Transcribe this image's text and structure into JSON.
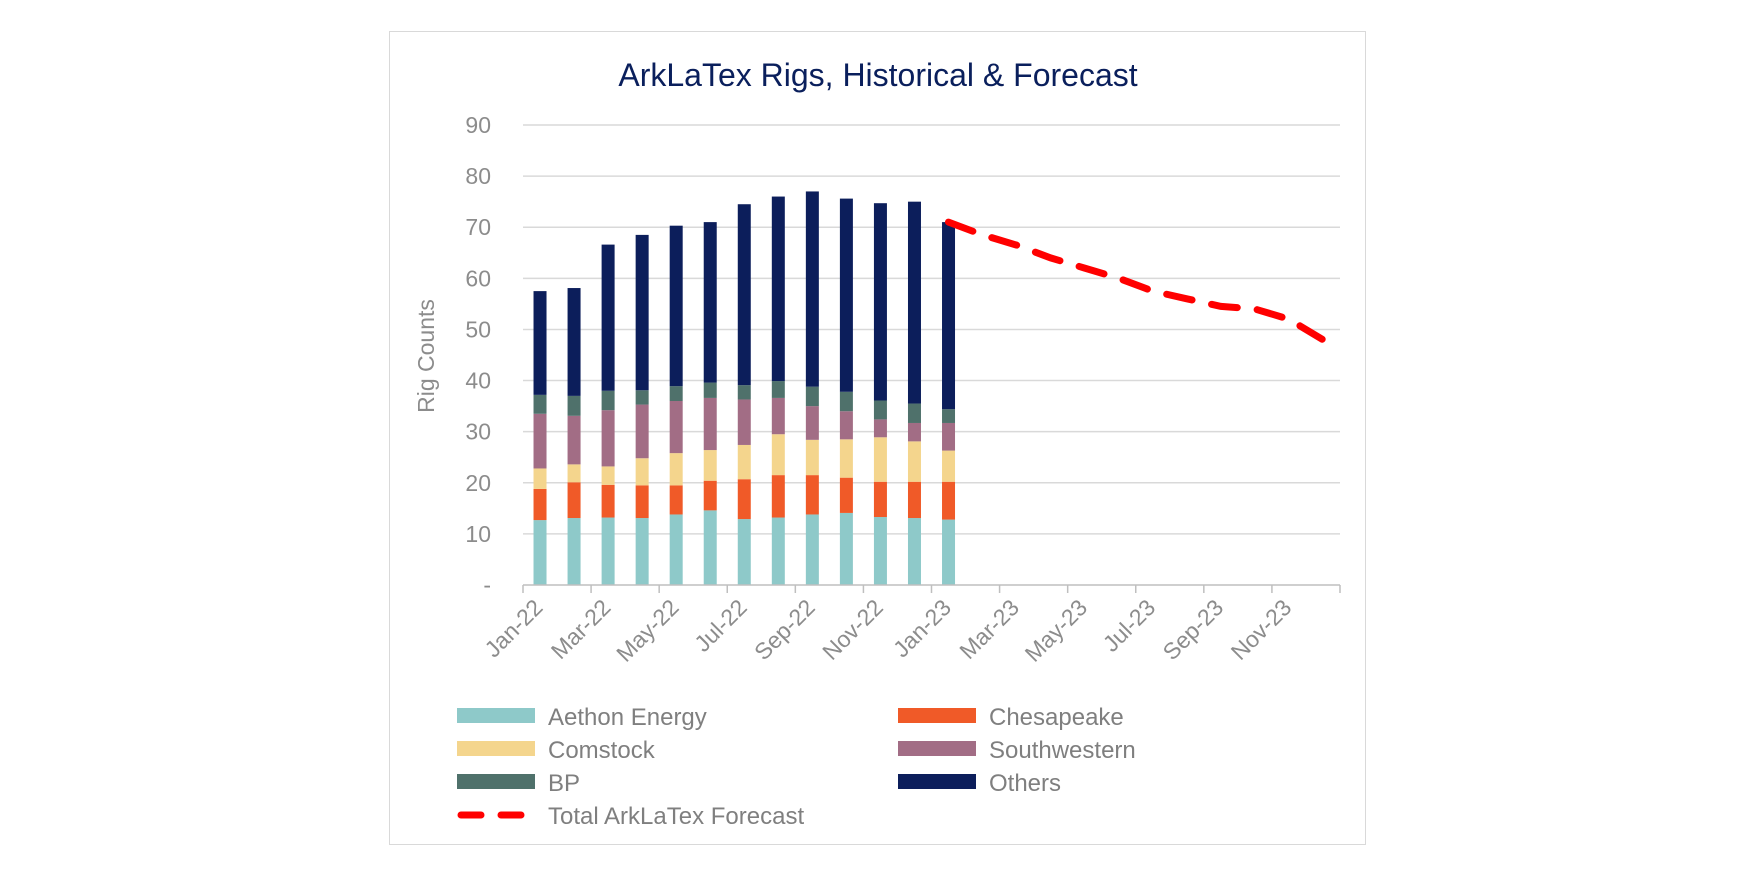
{
  "chart_data": {
    "type": "bar",
    "title": "ArkLaTex Rigs, Historical & Forecast",
    "xlabel": "",
    "ylabel": "Rig Counts",
    "ylim": [
      0,
      90
    ],
    "yticks": [
      "-",
      "10",
      "20",
      "30",
      "40",
      "50",
      "60",
      "70",
      "80",
      "90"
    ],
    "xtick_labels": [
      "Jan-22",
      "Mar-22",
      "May-22",
      "Jul-22",
      "Sep-22",
      "Nov-22",
      "Jan-23",
      "Mar-23",
      "May-23",
      "Jul-23",
      "Sep-23",
      "Nov-23"
    ],
    "months": [
      "Jan-22",
      "Feb-22",
      "Mar-22",
      "Apr-22",
      "May-22",
      "Jun-22",
      "Jul-22",
      "Aug-22",
      "Sep-22",
      "Oct-22",
      "Nov-22",
      "Dec-22",
      "Jan-23",
      "Feb-23",
      "Mar-23",
      "Apr-23",
      "May-23",
      "Jun-23",
      "Jul-23",
      "Aug-23",
      "Sep-23",
      "Oct-23",
      "Nov-23",
      "Dec-23"
    ],
    "stacked": true,
    "grid": true,
    "legend_position": "bottom",
    "series": [
      {
        "name": "Aethon Energy",
        "color": "#8ec9c9",
        "values": [
          12.7,
          13.1,
          13.2,
          13.1,
          13.8,
          14.6,
          12.9,
          13.2,
          13.8,
          14.1,
          13.3,
          13.1,
          12.8
        ]
      },
      {
        "name": "Chesapeake",
        "color": "#f05a28",
        "values": [
          6.1,
          7.0,
          6.4,
          6.4,
          5.7,
          5.8,
          7.8,
          8.3,
          7.7,
          6.9,
          6.9,
          7.1,
          7.4
        ]
      },
      {
        "name": "Comstock",
        "color": "#f4d58d",
        "values": [
          4.0,
          3.5,
          3.6,
          5.3,
          6.3,
          6.0,
          6.7,
          8.0,
          6.9,
          7.5,
          8.7,
          7.9,
          6.1
        ]
      },
      {
        "name": "Southwestern",
        "color": "#a26d85",
        "values": [
          10.7,
          9.5,
          11.0,
          10.5,
          10.2,
          10.2,
          8.9,
          7.1,
          6.6,
          5.5,
          3.5,
          3.6,
          5.4
        ]
      },
      {
        "name": "BP",
        "color": "#4f716b",
        "values": [
          3.7,
          3.9,
          3.8,
          2.8,
          2.9,
          3.0,
          2.8,
          3.3,
          3.8,
          3.8,
          3.7,
          3.8,
          2.7
        ]
      },
      {
        "name": "Others",
        "color": "#0c1e5b",
        "values": [
          20.3,
          21.1,
          28.6,
          30.4,
          31.4,
          31.4,
          35.4,
          36.1,
          38.2,
          37.8,
          38.6,
          39.5,
          36.6
        ]
      }
    ],
    "forecast": {
      "name": "Total ArkLaTex Forecast",
      "color": "#ff0000",
      "style": "dashed",
      "x": [
        "Jan-23",
        "Feb-23",
        "Mar-23",
        "Apr-23",
        "May-23",
        "Jun-23",
        "Jul-23",
        "Aug-23",
        "Sep-23",
        "Oct-23",
        "Nov-23",
        "Dec-23"
      ],
      "values": [
        71,
        68.5,
        66.5,
        64,
        62,
        60,
        57.5,
        56,
        54.5,
        54,
        52,
        48
      ]
    }
  }
}
